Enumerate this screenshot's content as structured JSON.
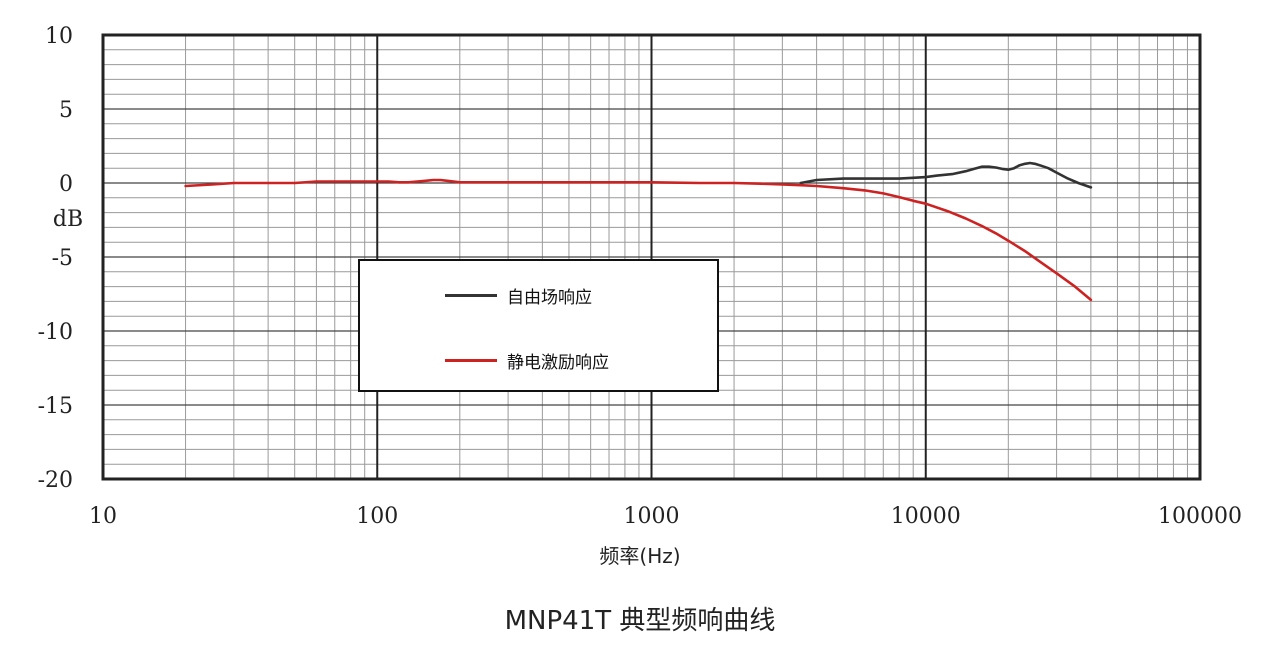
{
  "chart_data": {
    "type": "line",
    "xscale": "log",
    "xlim": [
      10,
      100000
    ],
    "ylim": [
      -20,
      10
    ],
    "xticks": [
      "10",
      "100",
      "1000",
      "10000",
      "100000"
    ],
    "yticks": [
      "10",
      "5",
      "0",
      "-5",
      "-10",
      "-15",
      "-20"
    ],
    "ylabel": "dB",
    "xlabel": "频率(Hz)",
    "caption": "MNP41T 典型频响曲线",
    "grid": true,
    "legend_position": "center-left",
    "series": [
      {
        "name": "自由场响应",
        "color": "#333333",
        "x": [
          3500,
          4000,
          5000,
          6000,
          7000,
          8000,
          9000,
          10000,
          11000,
          12500,
          14000,
          15000,
          16000,
          17000,
          18000,
          19000,
          20000,
          21000,
          22000,
          23000,
          24000,
          25000,
          26000,
          28000,
          30000,
          33000,
          36000,
          40000
        ],
        "y": [
          0,
          0.2,
          0.3,
          0.3,
          0.3,
          0.3,
          0.35,
          0.4,
          0.5,
          0.6,
          0.8,
          0.95,
          1.1,
          1.1,
          1.05,
          0.95,
          0.9,
          1.0,
          1.2,
          1.3,
          1.35,
          1.3,
          1.2,
          1.0,
          0.7,
          0.3,
          0,
          -0.3
        ]
      },
      {
        "name": "静电激励响应",
        "color": "#cc2222",
        "x": [
          20,
          25,
          30,
          35,
          40,
          50,
          60,
          70,
          80,
          90,
          100,
          110,
          120,
          130,
          140,
          150,
          160,
          170,
          180,
          190,
          200,
          300,
          500,
          700,
          1000,
          1500,
          2000,
          2500,
          3000,
          3500,
          4000,
          5000,
          6000,
          7000,
          8000,
          9000,
          10000,
          12000,
          14000,
          16000,
          18000,
          20000,
          23000,
          26000,
          30000,
          35000,
          40000
        ],
        "y": [
          -0.2,
          -0.1,
          0,
          0,
          0,
          0,
          0.1,
          0.1,
          0.1,
          0.1,
          0.1,
          0.1,
          0.05,
          0.05,
          0.1,
          0.15,
          0.2,
          0.2,
          0.15,
          0.1,
          0.05,
          0.05,
          0.05,
          0.05,
          0.05,
          0,
          0,
          -0.05,
          -0.1,
          -0.15,
          -0.2,
          -0.35,
          -0.5,
          -0.7,
          -0.95,
          -1.2,
          -1.4,
          -1.9,
          -2.4,
          -2.9,
          -3.4,
          -3.9,
          -4.6,
          -5.3,
          -6.1,
          -7.0,
          -7.9
        ]
      }
    ]
  }
}
